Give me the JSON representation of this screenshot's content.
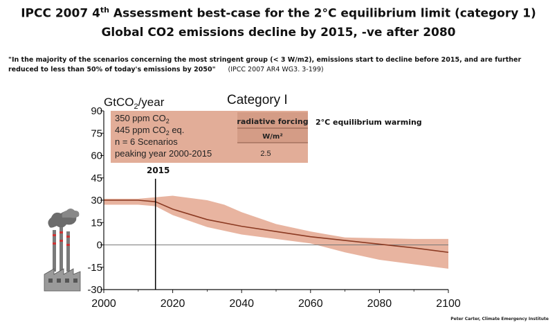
{
  "title_line1": "IPCC 2007 4th Assessment best-case for the 2°C equilibrium limit  (category 1)",
  "title_line1_pre": "IPCC 2007 4",
  "title_line1_sup": "th",
  "title_line1_post": " Assessment best-case for the 2°C equilibrium limit  (category 1)",
  "title_line2": "Global CO2 emissions decline by 2015, -ve after 2080",
  "quote_text": "\"In the majority of the scenarios concerning the most stringent group (< 3 W/m2), emissions start to decline before 2015, and are further reduced to less than 50% of today's emissions by 2050\"",
  "quote_citation": "(IPCC 2007 AR4 WG3. 3-199)",
  "credit": "Peter Carter, Climate Emergency Institute",
  "colors": {
    "band_fill": "#e8b4a0",
    "median_line": "#8b3a22",
    "info_box": "#e2ad98",
    "info_box_header": "#d49c86",
    "axis": "#111111",
    "zero_line": "#777777"
  },
  "info": {
    "co2_ppm": "350 ppm CO",
    "co2_sub": "2",
    "co2eq_ppm": "445 ppm CO",
    "co2eq_sub": "2",
    "co2eq_suffix": " eq.",
    "scenarios": "n = 6 Scenarios",
    "peaking": "peaking year 2000-2015",
    "rf_header": "radiative forcing",
    "rf_unit": "W/m²",
    "rf_value": "2.5",
    "warming": "2°C equilibrium warming"
  },
  "chart_data": {
    "type": "area",
    "title": "Category I",
    "ylabel": "GtCO2/year",
    "ylabel_pre": "GtCO",
    "ylabel_sub": "2",
    "ylabel_post": "/year",
    "xlabel": "",
    "xlim": [
      2000,
      2100
    ],
    "ylim": [
      -30,
      90
    ],
    "xticks": [
      2000,
      2020,
      2040,
      2060,
      2080,
      2100
    ],
    "yticks": [
      90,
      75,
      60,
      45,
      30,
      15,
      0,
      -15,
      -30
    ],
    "grid": false,
    "annotations": [
      {
        "x": 2015,
        "label": "2015"
      }
    ],
    "series": [
      {
        "kind": "median_line",
        "x": [
          2000,
          2010,
          2015,
          2020,
          2030,
          2040,
          2050,
          2060,
          2070,
          2080,
          2090,
          2100
        ],
        "y": [
          30,
          30,
          29,
          24,
          17,
          12.5,
          9,
          5.5,
          3,
          0.5,
          -2,
          -5
        ]
      },
      {
        "kind": "range_band",
        "x": [
          2000,
          2010,
          2015,
          2020,
          2030,
          2035,
          2040,
          2050,
          2060,
          2065,
          2070,
          2080,
          2090,
          2100
        ],
        "upper": [
          31,
          31,
          32,
          33,
          30,
          27,
          22,
          14,
          9,
          7,
          5,
          4.5,
          4,
          4
        ],
        "lower": [
          27,
          27,
          26,
          20,
          12,
          9.5,
          7,
          4,
          1,
          -2,
          -5,
          -10,
          -13,
          -16
        ]
      }
    ]
  }
}
